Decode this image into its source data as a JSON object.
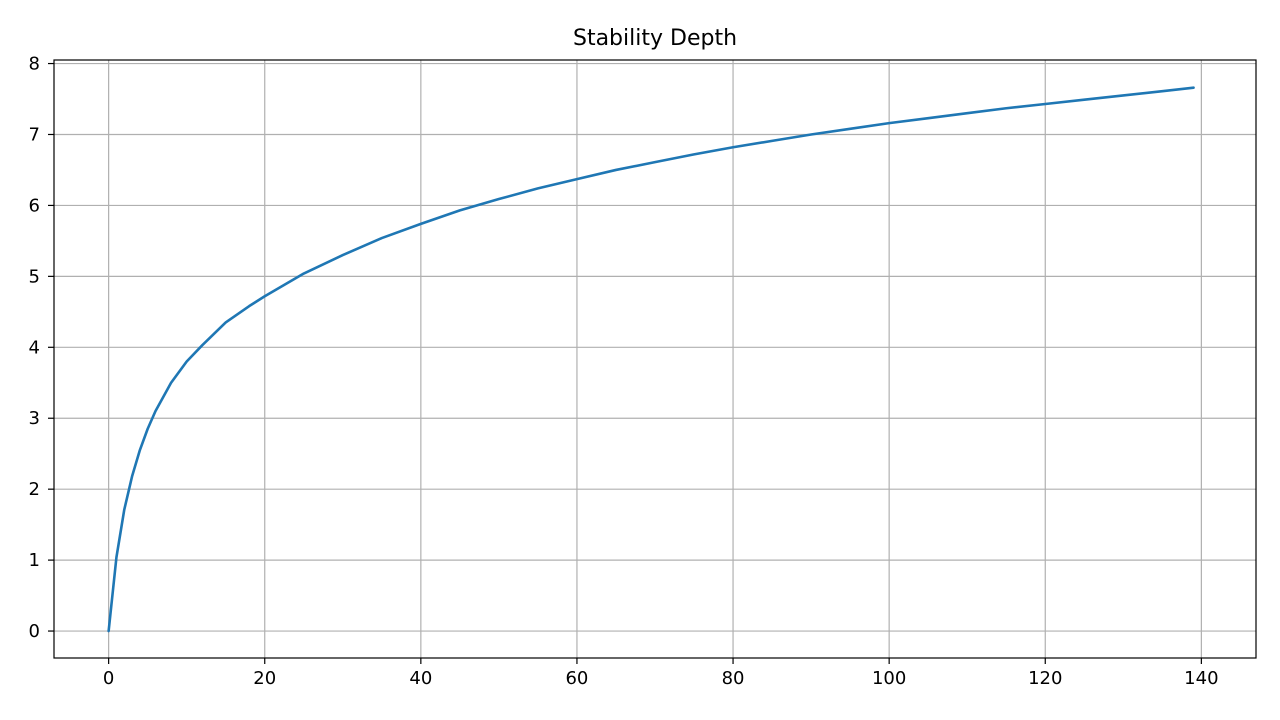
{
  "chart_data": {
    "type": "line",
    "title": "Stability Depth",
    "xlabel": "",
    "ylabel": "",
    "xlim": [
      -7,
      147
    ],
    "ylim": [
      -0.38,
      8.05
    ],
    "xticks": [
      0,
      20,
      40,
      60,
      80,
      100,
      120,
      140
    ],
    "yticks": [
      0,
      1,
      2,
      3,
      4,
      5,
      6,
      7,
      8
    ],
    "grid": true,
    "colors": {
      "line": "#1f77b4",
      "grid": "#b0b0b0",
      "axes": "#000000"
    },
    "series": [
      {
        "x": [
          0,
          1,
          2,
          3,
          4,
          5,
          6,
          8,
          10,
          12,
          15,
          18,
          20,
          25,
          30,
          35,
          40,
          45,
          50,
          55,
          60,
          65,
          70,
          75,
          80,
          85,
          90,
          95,
          100,
          105,
          110,
          115,
          120,
          125,
          130,
          135,
          139
        ],
        "y": [
          0,
          1.04,
          1.71,
          2.18,
          2.55,
          2.85,
          3.1,
          3.5,
          3.8,
          4.03,
          4.35,
          4.58,
          4.72,
          5.04,
          5.3,
          5.54,
          5.74,
          5.93,
          6.09,
          6.24,
          6.37,
          6.5,
          6.61,
          6.72,
          6.82,
          6.91,
          7.0,
          7.08,
          7.16,
          7.23,
          7.3,
          7.37,
          7.43,
          7.49,
          7.55,
          7.61,
          7.66
        ]
      }
    ]
  }
}
